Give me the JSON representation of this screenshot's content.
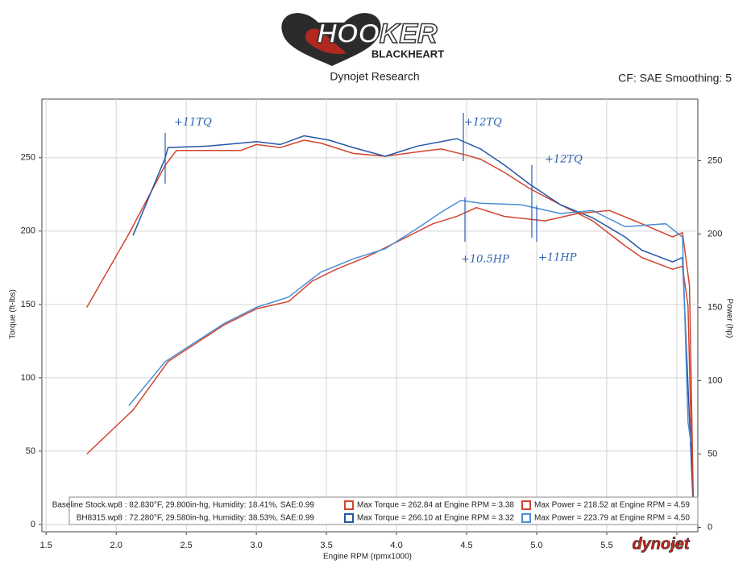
{
  "header": {
    "logo_main": "HOOKER",
    "logo_sub": "BLACKHEART",
    "left": "Dynojet Research",
    "right": "CF: SAE Smoothing: 5"
  },
  "chart_data": {
    "type": "line",
    "y_label": "Torque (ft-lbs)",
    "y2_label": "Power (hp)",
    "x_label": "Engine RPM (rpmx1000)",
    "xlim": [
      1.47,
      6.15
    ],
    "ylim": [
      -5,
      290
    ],
    "y2lim": [
      -3,
      292
    ],
    "xticks": [
      1.5,
      {
        "value": 2,
        "label": "2.0"
      },
      2.5,
      {
        "value": 3,
        "label": "3.0"
      },
      3.5,
      {
        "value": 4,
        "label": "4.0"
      },
      4.5,
      {
        "value": 5,
        "label": "5.0"
      },
      5.5,
      {
        "value": 6,
        "label": "6.0"
      }
    ],
    "yticks": [
      0,
      50,
      100,
      150,
      200,
      250
    ],
    "y2ticks": [
      0,
      50,
      100,
      150,
      200,
      250
    ],
    "grid": true,
    "series": [
      {
        "color": "#d0452f",
        "x": [
          1.79,
          2.09,
          2.35,
          2.43,
          2.89,
          3.0,
          3.17,
          3.34,
          3.46,
          3.69,
          3.92,
          4.15,
          4.32,
          4.49,
          4.6,
          4.77,
          4.95,
          5.17,
          5.4,
          5.63,
          5.75,
          5.97,
          6.04,
          6.08,
          6.1,
          6.12
        ],
        "values": [
          148,
          198,
          245,
          255,
          255,
          259,
          257,
          262,
          260,
          253,
          251,
          254,
          256,
          252,
          249,
          240,
          229,
          218,
          207,
          190,
          182,
          174,
          176,
          149,
          72,
          5
        ]
      },
      {
        "color": "#2456a8",
        "x": [
          2.12,
          2.35,
          2.37,
          2.66,
          2.89,
          3.0,
          3.17,
          3.34,
          3.52,
          3.69,
          3.92,
          4.15,
          4.43,
          4.6,
          4.77,
          4.95,
          5.17,
          5.4,
          5.63,
          5.75,
          5.97,
          6.04,
          6.09,
          6.12
        ],
        "values": [
          197,
          250,
          257,
          258,
          260,
          261,
          259,
          265,
          262,
          257,
          251,
          258,
          263,
          256,
          245,
          232,
          218,
          209,
          196,
          187,
          179,
          182,
          72,
          6
        ]
      },
      {
        "color": "#d0452f",
        "axis": "y2",
        "x": [
          1.79,
          2.12,
          2.37,
          2.77,
          3.0,
          3.23,
          3.4,
          3.57,
          3.8,
          4.03,
          4.26,
          4.43,
          4.57,
          4.77,
          5.06,
          5.29,
          5.52,
          5.75,
          5.97,
          6.04,
          6.09,
          6.12
        ],
        "values": [
          50,
          80,
          113,
          138,
          149,
          154,
          168,
          176,
          185,
          196,
          207,
          212,
          218,
          212,
          209,
          214,
          216,
          207,
          198,
          201,
          165,
          6
        ]
      },
      {
        "color": "#4a8fd6",
        "axis": "y2",
        "x": [
          2.09,
          2.35,
          2.77,
          3.0,
          3.23,
          3.46,
          3.69,
          3.92,
          4.15,
          4.32,
          4.46,
          4.6,
          4.89,
          5.17,
          5.4,
          5.63,
          5.92,
          6.04,
          6.08,
          6.1
        ],
        "values": [
          83,
          113,
          139,
          150,
          157,
          174,
          183,
          190,
          204,
          215,
          223,
          221,
          220,
          214,
          216,
          205,
          207,
          198,
          72,
          58
        ]
      }
    ],
    "legend_rows": [
      {
        "file": "Baseline Stock.wp8 : 82.830°F, 29.800in-hg, Humidity: 18.41%, SAE:0.99",
        "max_torque": "Max Torque = 262.84 at Engine RPM = 3.38",
        "max_power": "Max Power = 218.52 at Engine RPM = 4.59"
      },
      {
        "file": "BH8315.wp8 : 72.280°F, 29.580in-hg, Humidity: 38.53%, SAE:0.99",
        "max_torque": "Max Torque = 266.10 at Engine RPM = 3.32",
        "max_power": "Max Power = 223.79 at Engine RPM = 4.50"
      }
    ],
    "annotations": [
      "+11TQ",
      "+12TQ",
      "+12TQ",
      "+10.5HP",
      "+11HP"
    ],
    "watermark": "dynojet"
  }
}
